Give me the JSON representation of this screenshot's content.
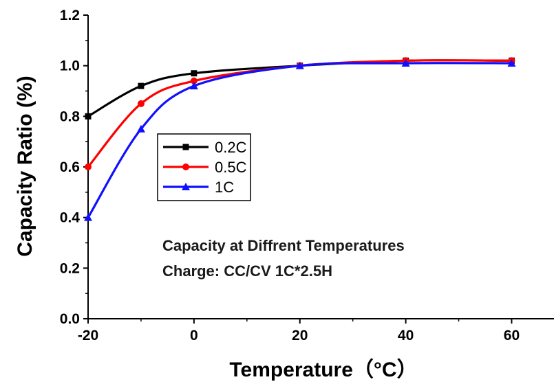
{
  "chart_data": {
    "type": "line",
    "xlabel": "Temperature（°C）",
    "ylabel": "Capacity Ratio (%)",
    "xlim": [
      -20,
      68
    ],
    "ylim": [
      0.0,
      1.2
    ],
    "x_ticks": [
      -20,
      0,
      20,
      40,
      60
    ],
    "x_tick_labels": [
      "-20",
      "0",
      "20",
      "40",
      "60"
    ],
    "y_ticks": [
      0.0,
      0.2,
      0.4,
      0.6,
      0.8,
      1.0,
      1.2
    ],
    "y_tick_labels": [
      "0.0",
      "0.2",
      "0.4",
      "0.6",
      "0.8",
      "1.0",
      "1.2"
    ],
    "grid": false,
    "legend_position": "center-left",
    "series": [
      {
        "name": "0.2C",
        "color": "#000000",
        "marker": "square",
        "x": [
          -20,
          -10,
          0,
          20,
          40,
          60
        ],
        "y": [
          0.8,
          0.92,
          0.97,
          1.0,
          1.02,
          1.02
        ]
      },
      {
        "name": "0.5C",
        "color": "#ff0000",
        "marker": "circle",
        "x": [
          -20,
          -10,
          0,
          20,
          40,
          60
        ],
        "y": [
          0.6,
          0.85,
          0.94,
          1.0,
          1.02,
          1.02
        ]
      },
      {
        "name": "1C",
        "color": "#1010ff",
        "marker": "triangle",
        "x": [
          -20,
          -10,
          0,
          20,
          40,
          60
        ],
        "y": [
          0.4,
          0.75,
          0.92,
          1.0,
          1.01,
          1.01
        ]
      }
    ],
    "annotations": [
      "Capacity at Diffrent Temperatures",
      "Charge: CC/CV 1C*2.5H"
    ]
  }
}
